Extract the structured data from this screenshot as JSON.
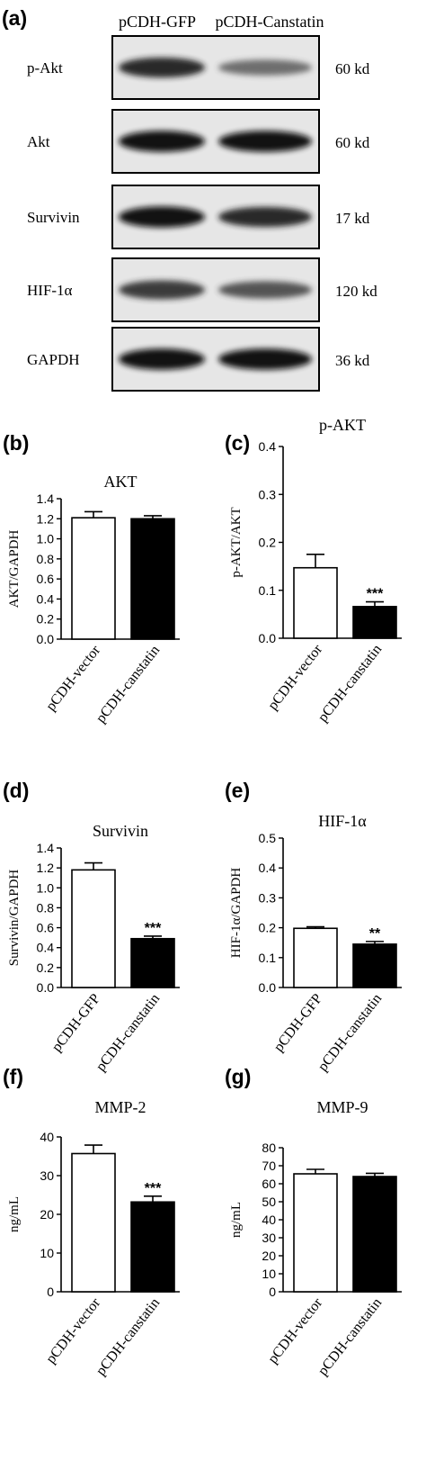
{
  "blot": {
    "panel_label": "(a)",
    "lanes": [
      "pCDH-GFP",
      "pCDH-Canstatin"
    ],
    "rows": [
      {
        "protein": "p-Akt",
        "size": "60 kd",
        "intensity": [
          0.85,
          0.45
        ]
      },
      {
        "protein": "Akt",
        "size": "60 kd",
        "intensity": [
          0.95,
          0.95
        ]
      },
      {
        "protein": "Survivin",
        "size": "17 kd",
        "intensity": [
          0.95,
          0.85
        ]
      },
      {
        "protein": "HIF-1α",
        "size": "120 kd",
        "intensity": [
          0.75,
          0.6
        ]
      },
      {
        "protein": "GAPDH",
        "size": "36 kd",
        "intensity": [
          0.95,
          0.95
        ]
      }
    ]
  },
  "chart_data": [
    {
      "panel_label": "(b)",
      "type": "bar",
      "title": "AKT",
      "ylabel": "AKT/GAPDH",
      "categories": [
        "pCDH-vector",
        "pCDH-canstatin"
      ],
      "values": [
        1.21,
        1.2
      ],
      "errors": [
        0.06,
        0.03
      ],
      "colors": [
        "#ffffff",
        "#000000"
      ],
      "significance": [
        "",
        ""
      ],
      "ylim": [
        0,
        1.4
      ],
      "yticks": [
        "0.0",
        "0.2",
        "0.4",
        "0.6",
        "0.8",
        "1.0",
        "1.2",
        "1.4"
      ]
    },
    {
      "panel_label": "(c)",
      "type": "bar",
      "title": "p-AKT",
      "ylabel": "p-AKT/AKT",
      "categories": [
        "pCDH-vector",
        "pCDH-canstatin"
      ],
      "values": [
        0.147,
        0.066
      ],
      "errors": [
        0.028,
        0.01
      ],
      "colors": [
        "#ffffff",
        "#000000"
      ],
      "significance": [
        "",
        "***"
      ],
      "ylim": [
        0,
        0.4
      ],
      "yticks": [
        "0.0",
        "0.1",
        "0.2",
        "0.3",
        "0.4"
      ]
    },
    {
      "panel_label": "(d)",
      "type": "bar",
      "title": "Survivin",
      "ylabel": "Survivin/GAPDH",
      "categories": [
        "pCDH-GFP",
        "pCDH-canstatin"
      ],
      "values": [
        1.18,
        0.49
      ],
      "errors": [
        0.07,
        0.025
      ],
      "colors": [
        "#ffffff",
        "#000000"
      ],
      "significance": [
        "",
        "***"
      ],
      "ylim": [
        0,
        1.4
      ],
      "yticks": [
        "0.0",
        "0.2",
        "0.4",
        "0.6",
        "0.8",
        "1.0",
        "1.2",
        "1.4"
      ]
    },
    {
      "panel_label": "(e)",
      "type": "bar",
      "title": "HIF-1α",
      "ylabel": "HIF-1α/GAPDH",
      "categories": [
        "pCDH-GFP",
        "pCDH-canstatin"
      ],
      "values": [
        0.198,
        0.145
      ],
      "errors": [
        0.005,
        0.009
      ],
      "colors": [
        "#ffffff",
        "#000000"
      ],
      "significance": [
        "",
        "**"
      ],
      "ylim": [
        0,
        0.5
      ],
      "yticks": [
        "0.0",
        "0.1",
        "0.2",
        "0.3",
        "0.4",
        "0.5"
      ]
    },
    {
      "panel_label": "(f)",
      "type": "bar",
      "title": "MMP-2",
      "ylabel": "ng/mL",
      "categories": [
        "pCDH-vector",
        "pCDH-canstatin"
      ],
      "values": [
        35.7,
        23.2
      ],
      "errors": [
        2.2,
        1.5
      ],
      "colors": [
        "#ffffff",
        "#000000"
      ],
      "significance": [
        "",
        "***"
      ],
      "ylim": [
        0,
        40
      ],
      "yticks": [
        "0",
        "10",
        "20",
        "30",
        "40"
      ]
    },
    {
      "panel_label": "(g)",
      "type": "bar",
      "title": "MMP-9",
      "ylabel": "ng/mL",
      "categories": [
        "pCDH-vector",
        "pCDH-canstatin"
      ],
      "values": [
        65.5,
        64.0
      ],
      "errors": [
        2.5,
        1.8
      ],
      "colors": [
        "#ffffff",
        "#000000"
      ],
      "significance": [
        "",
        ""
      ],
      "ylim": [
        0,
        80
      ],
      "yticks": [
        "0",
        "10",
        "20",
        "30",
        "40",
        "50",
        "60",
        "70",
        "80"
      ]
    }
  ]
}
